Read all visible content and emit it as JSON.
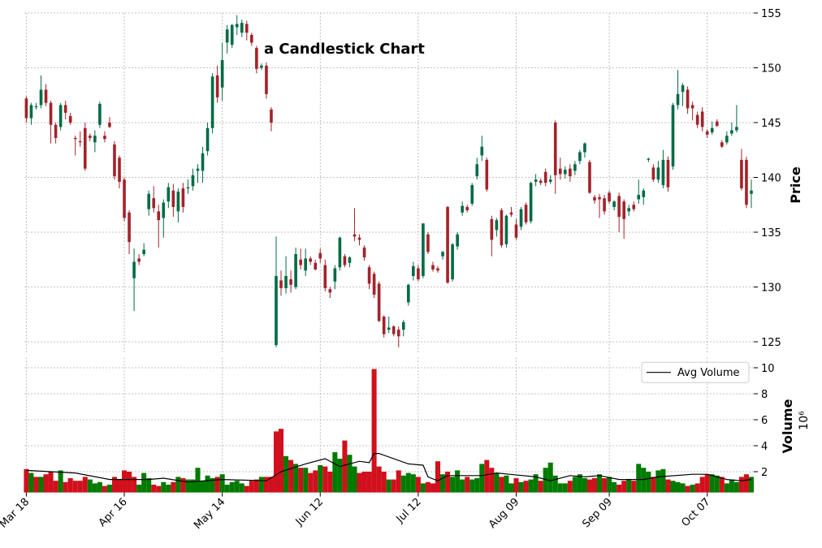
{
  "chart_data": {
    "type": "candlestick",
    "title": "a Candlestick Chart",
    "y_label": "Price",
    "volume_label": "Volume",
    "volume_scale_label": "10⁶",
    "up_color": "#006b45",
    "down_color": "#a3222b",
    "volume_up_color": "#007a00",
    "volume_down_color": "#d0101c",
    "grid": true,
    "legend_position": "upper right",
    "xlim": [
      -0.4,
      148.5
    ],
    "xticks": [
      {
        "value": 0,
        "label": "Mar 18"
      },
      {
        "value": 20,
        "label": "Apr 16"
      },
      {
        "value": 40,
        "label": "May 14"
      },
      {
        "value": 60,
        "label": "Jun 12"
      },
      {
        "value": 80,
        "label": "Jul 12"
      },
      {
        "value": 100,
        "label": "Aug 09"
      },
      {
        "value": 119,
        "label": "Sep 09"
      },
      {
        "value": 139,
        "label": "Oct 07"
      }
    ],
    "ylim": [
      124,
      155
    ],
    "yticks": [
      125,
      130,
      135,
      140,
      145,
      150,
      155
    ],
    "volume_ylim": [
      0.4,
      10.8
    ],
    "volume_yticks": [
      2,
      4,
      6,
      8,
      10
    ],
    "open": [
      147.2,
      145.4,
      146.4,
      146.6,
      148.0,
      146.8,
      144.8,
      144.6,
      146.6,
      145.6,
      143.6,
      143.3,
      144.5,
      143.8,
      143.2,
      144.8,
      143.8,
      145.0,
      143.0,
      141.8,
      139.8,
      136.8,
      130.8,
      132.6,
      133.0,
      137.1,
      138.1,
      136.9,
      136.3,
      137.8,
      138.8,
      136.9,
      139.0,
      139.0,
      139.2,
      140.6,
      140.6,
      142.4,
      144.5,
      149.3,
      148.2,
      152.3,
      152.1,
      153.7,
      153.2,
      154.0,
      153.0,
      151.8,
      150.0,
      150.2,
      146.2,
      124.7,
      130.6,
      129.9,
      130.7,
      130.0,
      132.5,
      131.5,
      132.6,
      132.2,
      133.1,
      132.0,
      129.8,
      130.5,
      131.8,
      132.8,
      132.2,
      134.8,
      134.5,
      133.6,
      131.8,
      131.2,
      130.3,
      127.3,
      126.1,
      126.4,
      126.1,
      126.1,
      128.6,
      131.0,
      131.7,
      131.0,
      134.8,
      132.0,
      131.7,
      132.8,
      137.3,
      130.7,
      133.7,
      136.8,
      137.3,
      137.6,
      140.1,
      142.0,
      141.6,
      136.2,
      135.2,
      137.0,
      133.9,
      136.8,
      135.7,
      135.5,
      137.5,
      136.0,
      139.6,
      139.7,
      140.5,
      139.6,
      145.0,
      140.8,
      140.3,
      140.8,
      140.6,
      141.5,
      142.3,
      141.4,
      138.2,
      138.2,
      138.1,
      138.6,
      137.3,
      138.3,
      137.8,
      136.9,
      137.5,
      138.0,
      138.2,
      141.6,
      140.9,
      139.8,
      139.3,
      141.6,
      141.0,
      146.6,
      147.8,
      148.0,
      146.6,
      145.7,
      146.0,
      144.2,
      144.1,
      145.1,
      143.2,
      143.2,
      144.0,
      144.3,
      141.6,
      141.6,
      138.5
    ],
    "high": [
      147.4,
      146.8,
      146.8,
      149.3,
      148.5,
      147.0,
      145.0,
      146.8,
      147.0,
      145.9,
      143.8,
      144.2,
      145.0,
      144.0,
      144.3,
      146.9,
      144.2,
      145.5,
      143.3,
      142.0,
      140.0,
      137.0,
      133.5,
      133.0,
      134.0,
      138.8,
      139.2,
      137.5,
      138.0,
      139.5,
      139.4,
      139.0,
      139.5,
      139.8,
      140.8,
      141.2,
      142.8,
      145.0,
      149.5,
      150.2,
      152.3,
      153.9,
      154.0,
      154.8,
      154.4,
      154.3,
      153.2,
      152.0,
      150.4,
      150.5,
      146.4,
      134.6,
      131.5,
      132.8,
      131.5,
      133.6,
      133.5,
      133.5,
      132.8,
      132.5,
      133.5,
      132.5,
      130.0,
      132.0,
      134.6,
      133.0,
      132.8,
      137.2,
      134.8,
      133.8,
      132.0,
      131.4,
      130.5,
      127.4,
      127.3,
      126.5,
      126.4,
      127.0,
      130.3,
      132.3,
      132.0,
      135.8,
      135.0,
      132.3,
      131.9,
      133.3,
      137.4,
      134.0,
      135.0,
      137.8,
      137.5,
      139.5,
      141.8,
      143.8,
      141.8,
      136.5,
      136.3,
      137.2,
      136.6,
      137.3,
      136.2,
      137.3,
      137.7,
      139.6,
      140.3,
      139.9,
      140.8,
      140.2,
      145.2,
      141.8,
      141.0,
      141.2,
      141.5,
      142.5,
      143.2,
      141.6,
      138.4,
      138.5,
      138.4,
      138.8,
      137.9,
      138.6,
      138.0,
      137.5,
      137.8,
      139.8,
      139.0,
      141.8,
      141.2,
      141.5,
      142.5,
      141.9,
      146.8,
      149.8,
      148.6,
      148.3,
      146.9,
      146.0,
      146.4,
      144.4,
      145.1,
      145.3,
      143.4,
      144.2,
      145.0,
      146.6,
      142.6,
      141.9,
      139.8
    ],
    "low": [
      145.0,
      144.8,
      146.2,
      146.3,
      146.5,
      143.1,
      143.1,
      144.3,
      145.3,
      144.8,
      142.0,
      142.8,
      140.6,
      143.3,
      142.3,
      144.5,
      143.2,
      144.5,
      139.8,
      139.0,
      136.0,
      133.0,
      127.8,
      132.0,
      132.8,
      136.5,
      136.8,
      133.6,
      134.5,
      137.2,
      136.4,
      135.9,
      136.8,
      138.5,
      138.8,
      139.5,
      139.5,
      142.0,
      144.0,
      146.8,
      147.0,
      151.3,
      151.8,
      153.0,
      152.8,
      152.5,
      152.0,
      149.5,
      149.8,
      147.2,
      144.2,
      124.5,
      129.2,
      129.4,
      129.5,
      129.8,
      131.6,
      131.0,
      132.0,
      131.5,
      132.2,
      129.6,
      129.0,
      129.8,
      131.5,
      131.8,
      131.8,
      134.2,
      133.8,
      132.4,
      129.8,
      129.0,
      126.8,
      125.4,
      125.8,
      125.5,
      124.5,
      125.5,
      128.3,
      130.6,
      130.5,
      130.8,
      133.0,
      131.4,
      131.3,
      132.5,
      130.3,
      130.5,
      133.4,
      136.5,
      136.8,
      137.4,
      139.8,
      141.5,
      138.7,
      132.8,
      134.6,
      133.6,
      133.6,
      136.4,
      134.3,
      135.2,
      135.7,
      135.8,
      139.2,
      139.3,
      139.2,
      139.4,
      138.5,
      139.8,
      139.9,
      139.6,
      140.2,
      141.2,
      141.8,
      138.5,
      137.6,
      136.3,
      136.6,
      137.6,
      137.0,
      135.0,
      134.4,
      136.5,
      136.9,
      137.6,
      137.5,
      141.4,
      139.6,
      139.5,
      139.0,
      138.7,
      140.7,
      146.2,
      146.5,
      145.8,
      145.2,
      144.5,
      144.2,
      143.6,
      143.9,
      144.6,
      142.7,
      143.0,
      143.8,
      144.1,
      138.8,
      137.2,
      137.2
    ],
    "close": [
      145.4,
      146.6,
      146.5,
      148.0,
      146.8,
      144.8,
      143.6,
      146.6,
      145.9,
      145.0,
      143.5,
      143.2,
      140.8,
      143.6,
      143.8,
      146.7,
      143.5,
      144.6,
      140.1,
      139.6,
      136.3,
      134.1,
      132.3,
      132.3,
      133.4,
      138.5,
      137.2,
      136.1,
      137.7,
      139.1,
      137.3,
      138.7,
      137.3,
      139.1,
      140.2,
      140.8,
      142.2,
      144.5,
      149.2,
      147.3,
      150.7,
      153.5,
      153.9,
      154.0,
      154.1,
      153.2,
      152.3,
      149.9,
      150.2,
      147.6,
      145.0,
      131.0,
      129.9,
      131.0,
      130.2,
      133.0,
      132.0,
      132.6,
      132.3,
      131.6,
      132.6,
      129.9,
      129.5,
      131.7,
      134.5,
      132.0,
      132.7,
      134.6,
      134.3,
      132.7,
      130.3,
      129.3,
      126.9,
      125.7,
      126.3,
      125.7,
      125.5,
      126.8,
      130.2,
      131.9,
      130.7,
      135.8,
      133.2,
      131.6,
      131.5,
      133.2,
      130.4,
      133.9,
      134.8,
      137.4,
      137.0,
      139.3,
      141.2,
      142.8,
      138.9,
      134.3,
      136.1,
      133.8,
      136.5,
      136.6,
      134.5,
      137.1,
      135.9,
      139.5,
      139.8,
      139.5,
      139.5,
      139.8,
      140.2,
      140.3,
      140.7,
      140.1,
      141.2,
      142.3,
      143.1,
      138.6,
      137.9,
      138.0,
      136.9,
      137.8,
      137.8,
      136.4,
      136.2,
      137.2,
      137.1,
      138.4,
      138.8,
      141.7,
      139.8,
      140.9,
      141.6,
      139.1,
      146.6,
      147.6,
      148.4,
      146.3,
      146.3,
      144.8,
      144.6,
      143.9,
      144.5,
      144.7,
      142.8,
      143.8,
      144.3,
      144.6,
      139.0,
      137.5,
      138.8
    ],
    "volume": [
      2.2,
      1.9,
      1.6,
      1.6,
      1.8,
      2.0,
      1.3,
      2.1,
      1.2,
      1.5,
      1.3,
      1.3,
      1.6,
      1.4,
      1.1,
      1.2,
      0.9,
      1.0,
      1.6,
      1.4,
      2.1,
      2.0,
      1.6,
      1.0,
      1.9,
      1.5,
      1.0,
      0.9,
      1.2,
      1.0,
      1.2,
      1.6,
      1.5,
      1.4,
      1.4,
      2.3,
      1.3,
      1.7,
      1.5,
      1.6,
      1.8,
      1.0,
      1.2,
      1.3,
      1.1,
      0.9,
      1.3,
      1.4,
      1.6,
      1.6,
      1.6,
      5.1,
      5.3,
      3.2,
      2.9,
      2.6,
      2.3,
      2.3,
      1.9,
      2.1,
      2.5,
      2.4,
      2.0,
      3.5,
      3.0,
      4.4,
      3.3,
      2.4,
      1.9,
      2.0,
      2.0,
      9.9,
      2.4,
      2.0,
      1.4,
      1.4,
      2.1,
      1.7,
      1.9,
      1.8,
      1.6,
      1.1,
      1.2,
      1.1,
      2.8,
      1.8,
      2.0,
      1.6,
      2.1,
      1.4,
      1.6,
      1.4,
      1.5,
      2.6,
      2.9,
      2.3,
      1.9,
      1.6,
      1.7,
      1.1,
      1.5,
      1.2,
      1.3,
      1.4,
      1.8,
      1.3,
      2.3,
      2.7,
      1.7,
      1.1,
      1.1,
      1.3,
      1.6,
      1.8,
      1.5,
      1.4,
      1.5,
      1.8,
      1.5,
      1.6,
      1.2,
      1.0,
      1.3,
      1.4,
      1.3,
      2.6,
      2.3,
      2.0,
      1.6,
      2.1,
      2.2,
      1.4,
      1.3,
      1.2,
      1.1,
      0.9,
      1.0,
      1.1,
      1.6,
      1.8,
      1.8,
      1.7,
      1.6,
      1.1,
      1.4,
      1.2,
      1.6,
      1.8,
      1.6
    ],
    "avg_volume": {
      "name": "Avg Volume",
      "color": "#000000",
      "x": [
        0,
        10,
        17,
        25,
        28,
        33,
        40,
        49,
        52,
        57,
        61,
        64,
        68,
        70,
        71,
        72,
        78,
        81,
        82,
        84,
        86,
        93,
        96,
        104,
        107,
        111,
        114,
        117,
        121,
        126,
        129,
        136,
        139,
        143,
        146,
        148
      ],
      "values": [
        2.1,
        1.9,
        1.4,
        1.4,
        1.5,
        1.2,
        1.4,
        1.3,
        2.0,
        2.6,
        3.0,
        2.4,
        2.8,
        2.7,
        3.4,
        3.4,
        2.6,
        2.5,
        1.6,
        1.3,
        1.7,
        1.7,
        1.9,
        1.6,
        1.3,
        1.7,
        1.6,
        1.7,
        1.4,
        1.4,
        1.6,
        1.8,
        1.8,
        1.4,
        1.3,
        1.4
      ]
    }
  }
}
